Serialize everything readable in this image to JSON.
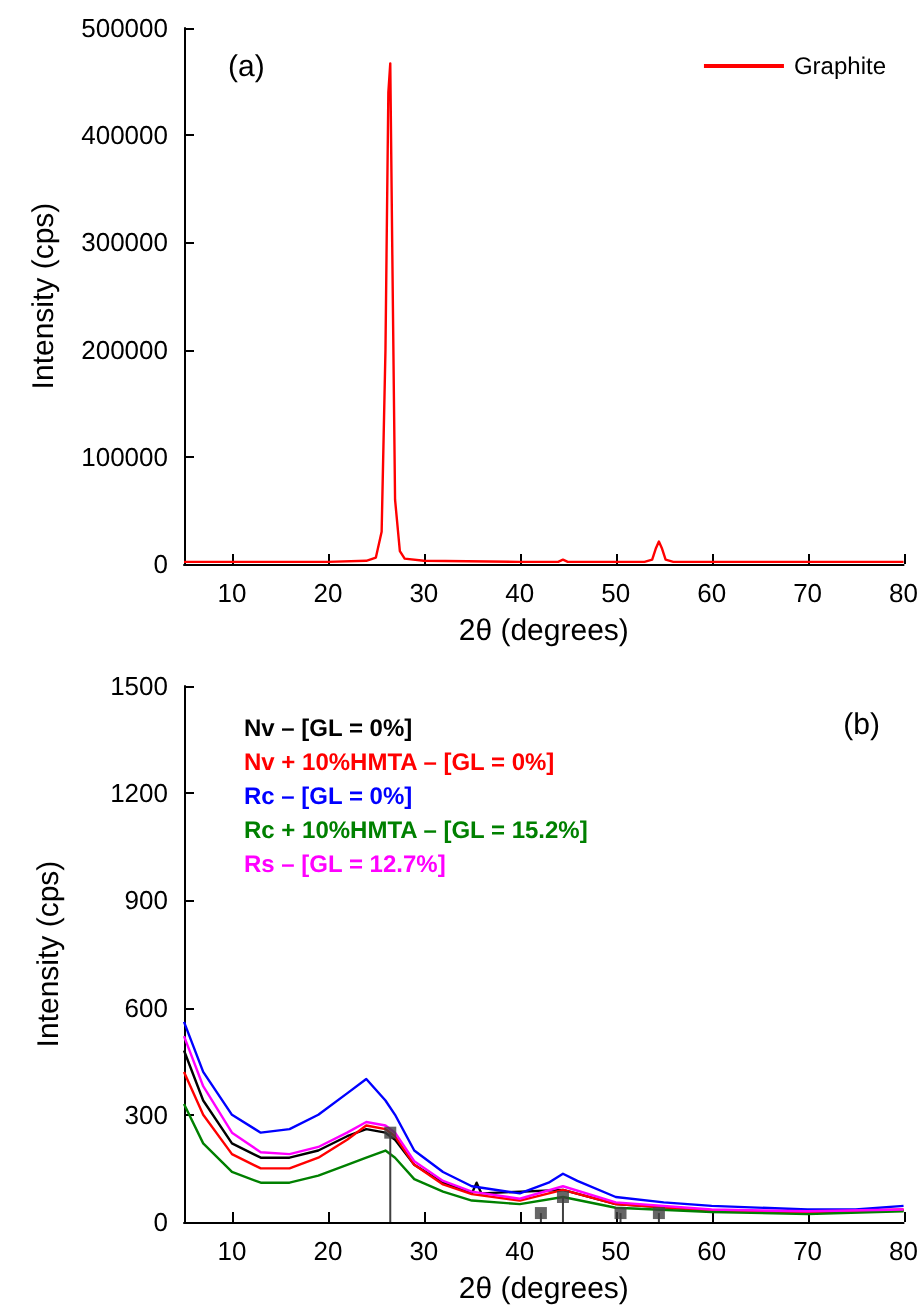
{
  "chart_data": [
    {
      "type": "line",
      "annotations": [
        "(a)"
      ],
      "xlabel": "2θ (degrees)",
      "ylabel": "Intensity (cps)",
      "xlim": [
        5,
        80
      ],
      "xticks": [
        10,
        20,
        30,
        40,
        50,
        60,
        70,
        80
      ],
      "ylim": [
        0,
        500000
      ],
      "yticks": [
        0,
        100000,
        200000,
        300000,
        400000,
        500000
      ],
      "legend": "top right",
      "marker": "none",
      "grid": false,
      "series": [
        {
          "name": "Graphite",
          "color": "#ff0000",
          "x": [
            5,
            10,
            20,
            24,
            25,
            25.6,
            26,
            26.3,
            26.5,
            26.7,
            27,
            27.5,
            28,
            30,
            40,
            44,
            44.5,
            45,
            53,
            53.8,
            54.2,
            54.5,
            54.8,
            55.2,
            56,
            60,
            70,
            80
          ],
          "values": [
            2000,
            2000,
            2000,
            3000,
            6000,
            30000,
            200000,
            440000,
            467000,
            300000,
            60000,
            12000,
            5000,
            3000,
            2000,
            2000,
            4000,
            2000,
            2000,
            4000,
            15000,
            21000,
            15000,
            4000,
            2000,
            2000,
            2000,
            2000
          ]
        }
      ]
    },
    {
      "type": "line",
      "annotations": [
        "(b)"
      ],
      "xlabel": "2θ (degrees)",
      "ylabel": "Intensity (cps)",
      "xlim": [
        5,
        80
      ],
      "xticks": [
        10,
        20,
        30,
        40,
        50,
        60,
        70,
        80
      ],
      "ylim": [
        0,
        1500
      ],
      "yticks": [
        0,
        300,
        600,
        900,
        1200,
        1500
      ],
      "legend": "top left",
      "marker": "none",
      "grid": false,
      "series": [
        {
          "name": "Nv – [GL = 0%]",
          "color": "#000000",
          "x": [
            5,
            7,
            10,
            13,
            16,
            19,
            22,
            24,
            26,
            27,
            29,
            32,
            35,
            35.5,
            36,
            44.5,
            50,
            60,
            70,
            80
          ],
          "values": [
            480,
            340,
            220,
            180,
            180,
            200,
            240,
            260,
            250,
            230,
            160,
            110,
            80,
            110,
            80,
            90,
            50,
            32,
            28,
            32
          ]
        },
        {
          "name": "Nv + 10%HMTA – [GL = 0%]",
          "color": "#ff0000",
          "x": [
            5,
            7,
            10,
            13,
            16,
            19,
            22,
            24,
            26,
            27,
            29,
            32,
            35,
            40,
            44.5,
            50,
            60,
            70,
            80
          ],
          "values": [
            420,
            300,
            190,
            150,
            150,
            180,
            230,
            270,
            260,
            240,
            160,
            105,
            78,
            60,
            90,
            50,
            32,
            28,
            35
          ]
        },
        {
          "name": "Rc – [GL = 0%]",
          "color": "#0000ff",
          "x": [
            5,
            7,
            10,
            13,
            16,
            19,
            22,
            24,
            26,
            27,
            29,
            32,
            35,
            40,
            43,
            44.5,
            46,
            50,
            55,
            60,
            70,
            75,
            80
          ],
          "values": [
            560,
            420,
            300,
            250,
            260,
            300,
            360,
            400,
            340,
            300,
            200,
            140,
            100,
            80,
            110,
            135,
            115,
            70,
            55,
            45,
            35,
            35,
            45
          ]
        },
        {
          "name": "Rc + 10%HMTA – [GL = 15.2%]",
          "color": "#008000",
          "x": [
            5,
            7,
            10,
            13,
            16,
            19,
            22,
            24,
            26,
            27,
            29,
            32,
            35,
            40,
            44.5,
            50,
            60,
            70,
            80
          ],
          "values": [
            330,
            220,
            140,
            110,
            110,
            130,
            160,
            180,
            200,
            180,
            120,
            85,
            60,
            50,
            70,
            40,
            28,
            22,
            30
          ]
        },
        {
          "name": "Rs – [GL = 12.7%]",
          "color": "#ff00ff",
          "x": [
            5,
            7,
            10,
            13,
            16,
            19,
            22,
            24,
            26,
            27,
            29,
            32,
            35,
            40,
            44.5,
            50,
            60,
            70,
            80
          ],
          "values": [
            520,
            380,
            250,
            195,
            190,
            210,
            250,
            280,
            270,
            250,
            170,
            115,
            85,
            65,
            100,
            55,
            35,
            30,
            35
          ]
        },
        {
          "type": "lollipop",
          "color": "#404040",
          "marker": "square",
          "x": [
            26.5,
            42.2,
            44.5,
            50.5,
            54.5
          ],
          "values": [
            250,
            25,
            70,
            25,
            25
          ]
        }
      ]
    }
  ]
}
